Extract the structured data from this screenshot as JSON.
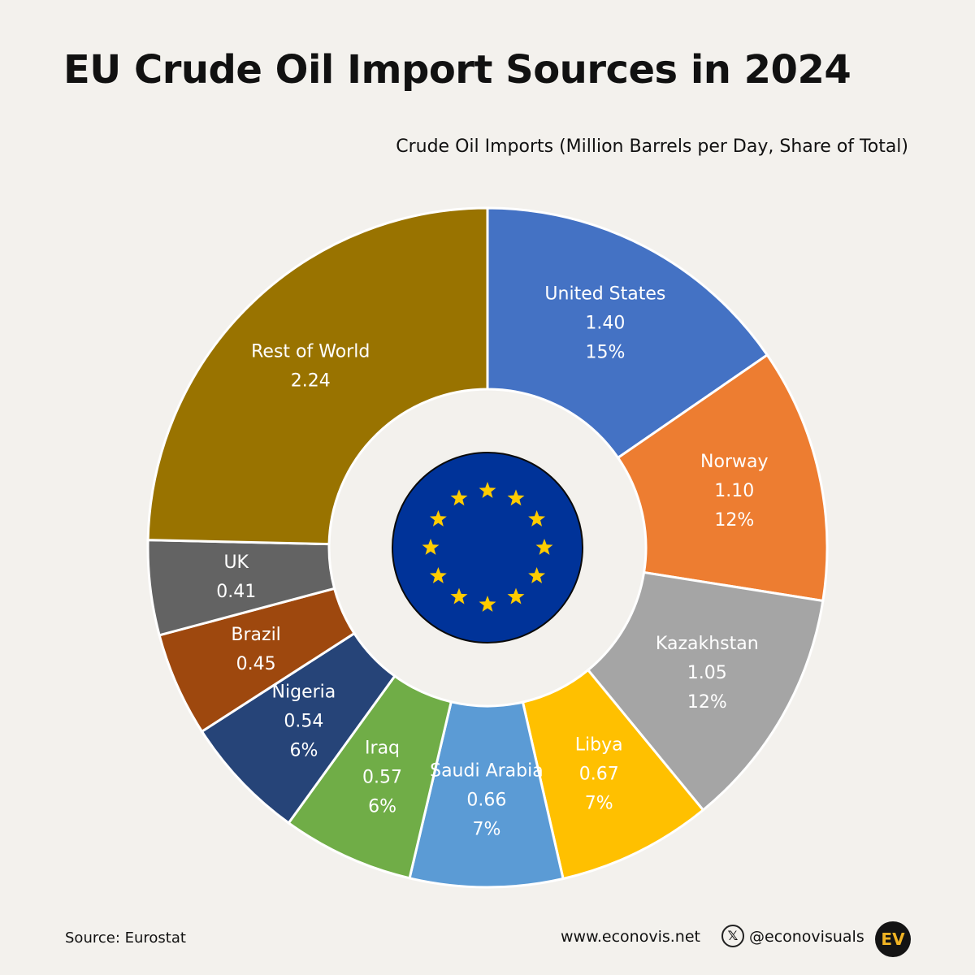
{
  "title": "EU Crude Oil Import Sources in 2024",
  "subtitle": "Crude Oil Imports (Million Barrels per Day, Share of Total)",
  "footer": {
    "source": "Source: Eurostat",
    "website": "www.econovis.net",
    "x_icon": "x-logo-icon",
    "handle": "@econovisuals",
    "logo": "EV"
  },
  "center_emblem": "eu-flag-icon",
  "chart_data": {
    "type": "pie",
    "style": "donut",
    "title": "EU Crude Oil Import Sources in 2024",
    "subtitle": "Crude Oil Imports (Million Barrels per Day, Share of Total)",
    "slices": [
      {
        "name": "United States",
        "value": 1.4,
        "value_label": "1.40",
        "share_label": "15%",
        "color": "#4472c4"
      },
      {
        "name": "Norway",
        "value": 1.1,
        "value_label": "1.10",
        "share_label": "12%",
        "color": "#ed7d31"
      },
      {
        "name": "Kazakhstan",
        "value": 1.05,
        "value_label": "1.05",
        "share_label": "12%",
        "color": "#a5a5a5"
      },
      {
        "name": "Libya",
        "value": 0.67,
        "value_label": "0.67",
        "share_label": "7%",
        "color": "#ffc000"
      },
      {
        "name": "Saudi Arabia",
        "value": 0.66,
        "value_label": "0.66",
        "share_label": "7%",
        "color": "#5b9bd5"
      },
      {
        "name": "Iraq",
        "value": 0.57,
        "value_label": "0.57",
        "share_label": "6%",
        "color": "#70ad47"
      },
      {
        "name": "Nigeria",
        "value": 0.54,
        "value_label": "0.54",
        "share_label": "6%",
        "color": "#264478"
      },
      {
        "name": "Brazil",
        "value": 0.45,
        "value_label": "0.45",
        "share_label": "",
        "color": "#9e480e"
      },
      {
        "name": "UK",
        "value": 0.41,
        "value_label": "0.41",
        "share_label": "",
        "color": "#636363"
      },
      {
        "name": "Rest of World",
        "value": 2.24,
        "value_label": "2.24",
        "share_label": "",
        "color": "#997300"
      }
    ]
  }
}
